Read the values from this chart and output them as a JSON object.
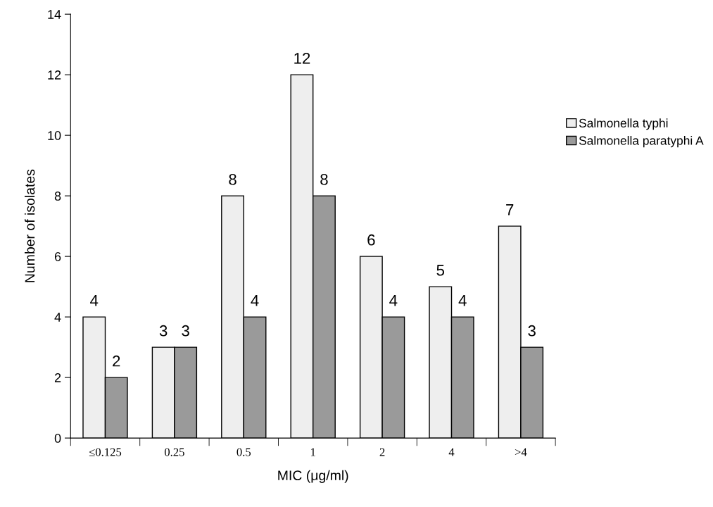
{
  "chart_data": {
    "type": "bar",
    "xlabel": "MIC (μg/ml)",
    "ylabel": "Number of isolates",
    "categories": [
      "≤0.125",
      "0.25",
      "0.5",
      "1",
      "2",
      "4",
      ">4"
    ],
    "series": [
      {
        "name": "Salmonella typhi",
        "color": "#eeeeee",
        "values": [
          4,
          3,
          8,
          12,
          6,
          5,
          7
        ]
      },
      {
        "name": "Salmonella paratyphi A",
        "color": "#9a9a9a",
        "values": [
          2,
          3,
          4,
          8,
          4,
          4,
          3
        ]
      }
    ],
    "ylim": [
      0,
      14
    ],
    "yticks": [
      0,
      2,
      4,
      6,
      8,
      10,
      12,
      14
    ],
    "grid": false,
    "legend": "right",
    "data_labels": true
  }
}
